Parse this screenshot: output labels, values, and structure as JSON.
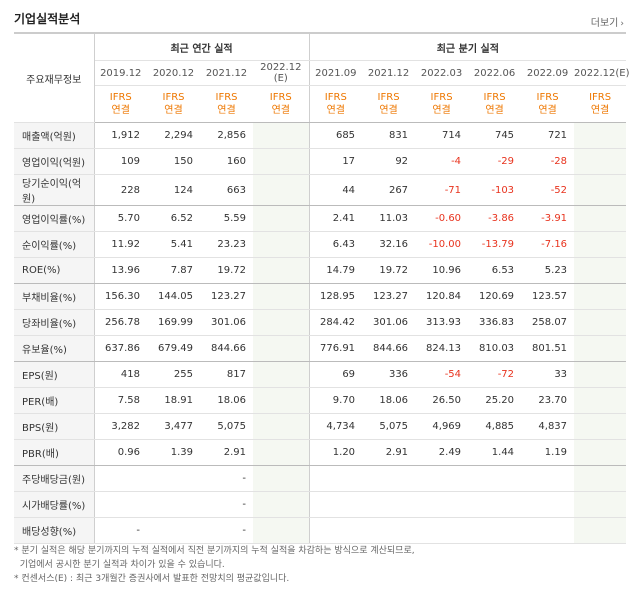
{
  "section": {
    "title": "기업실적분석",
    "more_label": "더보기",
    "more_icon": "chevron-right-icon"
  },
  "colors": {
    "negative": "#e8331e",
    "ifrs": "#ee7700",
    "estimate_bg": "#f5f8f2",
    "header_bg": "#f5f5f5"
  },
  "table": {
    "row_header_label": "주요재무정보",
    "annual_group": "최근 연간 실적",
    "quarter_group": "최근 분기 실적",
    "annual_periods": [
      "2019.12",
      "2020.12",
      "2021.12",
      "2022.12"
    ],
    "annual_estimate_mark": "(E)",
    "quarter_periods": [
      "2021.09",
      "2021.12",
      "2022.03",
      "2022.06",
      "2022.09",
      "2022.12"
    ],
    "quarter_estimate_mark": "(E)",
    "ifrs_label": "IFRS",
    "consolidated_label": "연결",
    "rows": [
      {
        "label": "매출액(억원)",
        "annual": [
          "1,912",
          "2,294",
          "2,856",
          ""
        ],
        "quarter": [
          "685",
          "831",
          "714",
          "745",
          "721",
          ""
        ]
      },
      {
        "label": "영업이익(억원)",
        "annual": [
          "109",
          "150",
          "160",
          ""
        ],
        "quarter": [
          "17",
          "92",
          "-4",
          "-29",
          "-28",
          ""
        ]
      },
      {
        "label": "당기순이익(억원)",
        "annual": [
          "228",
          "124",
          "663",
          ""
        ],
        "quarter": [
          "44",
          "267",
          "-71",
          "-103",
          "-52",
          ""
        ]
      },
      {
        "label": "영업이익률(%)",
        "annual": [
          "5.70",
          "6.52",
          "5.59",
          ""
        ],
        "quarter": [
          "2.41",
          "11.03",
          "-0.60",
          "-3.86",
          "-3.91",
          ""
        ]
      },
      {
        "label": "순이익률(%)",
        "annual": [
          "11.92",
          "5.41",
          "23.23",
          ""
        ],
        "quarter": [
          "6.43",
          "32.16",
          "-10.00",
          "-13.79",
          "-7.16",
          ""
        ]
      },
      {
        "label": "ROE(%)",
        "annual": [
          "13.96",
          "7.87",
          "19.72",
          ""
        ],
        "quarter": [
          "14.79",
          "19.72",
          "10.96",
          "6.53",
          "5.23",
          ""
        ]
      },
      {
        "label": "부채비율(%)",
        "annual": [
          "156.30",
          "144.05",
          "123.27",
          ""
        ],
        "quarter": [
          "128.95",
          "123.27",
          "120.84",
          "120.69",
          "123.57",
          ""
        ]
      },
      {
        "label": "당좌비율(%)",
        "annual": [
          "256.78",
          "169.99",
          "301.06",
          ""
        ],
        "quarter": [
          "284.42",
          "301.06",
          "313.93",
          "336.83",
          "258.07",
          ""
        ]
      },
      {
        "label": "유보율(%)",
        "annual": [
          "637.86",
          "679.49",
          "844.66",
          ""
        ],
        "quarter": [
          "776.91",
          "844.66",
          "824.13",
          "810.03",
          "801.51",
          ""
        ]
      },
      {
        "label": "EPS(원)",
        "annual": [
          "418",
          "255",
          "817",
          ""
        ],
        "quarter": [
          "69",
          "336",
          "-54",
          "-72",
          "33",
          ""
        ]
      },
      {
        "label": "PER(배)",
        "annual": [
          "7.58",
          "18.91",
          "18.06",
          ""
        ],
        "quarter": [
          "9.70",
          "18.06",
          "26.50",
          "25.20",
          "23.70",
          ""
        ]
      },
      {
        "label": "BPS(원)",
        "annual": [
          "3,282",
          "3,477",
          "5,075",
          ""
        ],
        "quarter": [
          "4,734",
          "5,075",
          "4,969",
          "4,885",
          "4,837",
          ""
        ]
      },
      {
        "label": "PBR(배)",
        "annual": [
          "0.96",
          "1.39",
          "2.91",
          ""
        ],
        "quarter": [
          "1.20",
          "2.91",
          "2.49",
          "1.44",
          "1.19",
          ""
        ]
      },
      {
        "label": "주당배당금(원)",
        "annual": [
          "",
          "",
          "-",
          ""
        ],
        "quarter": [
          "",
          "",
          "",
          "",
          "",
          ""
        ]
      },
      {
        "label": "시가배당률(%)",
        "annual": [
          "",
          "",
          "-",
          ""
        ],
        "quarter": [
          "",
          "",
          "",
          "",
          "",
          ""
        ]
      },
      {
        "label": "배당성향(%)",
        "annual": [
          "-",
          "",
          "-",
          ""
        ],
        "quarter": [
          "",
          "",
          "",
          "",
          "",
          ""
        ]
      }
    ]
  },
  "notes": [
    "* 분기 실적은 해당 분기까지의 누적 실적에서 직전 분기까지의 누적 실적을 차감하는 방식으로 계산되므로,",
    "  기업에서 공시한 분기 실적과 차이가 있을 수 있습니다.",
    "* 컨센서스(E) : 최근 3개월간 증권사에서 발표한 전망치의 평균값입니다."
  ]
}
